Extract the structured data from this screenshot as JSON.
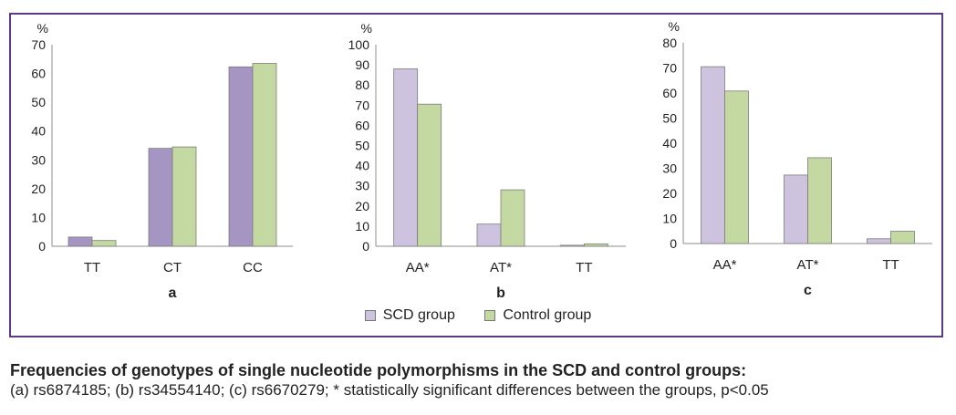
{
  "chart_data": [
    {
      "type": "bar",
      "label": "a",
      "ylabel": "%",
      "ylim": [
        0,
        70
      ],
      "yticks": [
        0,
        10,
        20,
        30,
        40,
        50,
        60,
        70
      ],
      "categories": [
        "TT",
        "CT",
        "CC"
      ],
      "series": [
        {
          "name": "SCD group",
          "values": [
            3.2,
            34,
            62.3
          ],
          "color": "#a595c3"
        },
        {
          "name": "Control group",
          "values": [
            2,
            34.5,
            63.5
          ],
          "color": "#c4d9a1"
        }
      ]
    },
    {
      "type": "bar",
      "label": "b",
      "ylabel": "%",
      "ylim": [
        0,
        100
      ],
      "yticks": [
        0,
        10,
        20,
        30,
        40,
        50,
        60,
        70,
        80,
        90,
        100
      ],
      "categories": [
        "AA*",
        "AT*",
        "TT"
      ],
      "series": [
        {
          "name": "SCD group",
          "values": [
            88,
            11,
            0.5
          ],
          "color": "#cdc3df"
        },
        {
          "name": "Control group",
          "values": [
            70.5,
            28,
            1.2
          ],
          "color": "#c4d9a1"
        }
      ]
    },
    {
      "type": "bar",
      "label": "c",
      "ylabel": "%",
      "ylim": [
        0,
        80
      ],
      "yticks": [
        0,
        10,
        20,
        30,
        40,
        50,
        60,
        70,
        80
      ],
      "categories": [
        "AA*",
        "AT*",
        "TT"
      ],
      "series": [
        {
          "name": "SCD group",
          "values": [
            70.5,
            27.3,
            1.9
          ],
          "color": "#cdc3df"
        },
        {
          "name": "Control group",
          "values": [
            60.8,
            34.2,
            4.9
          ],
          "color": "#c4d9a1"
        }
      ]
    }
  ],
  "legend": [
    {
      "label": "SCD group",
      "color": "#cdc3df"
    },
    {
      "label": "Control group",
      "color": "#c4d9a1"
    }
  ],
  "caption": {
    "title": "Frequencies of genotypes of single nucleotide polymorphisms in the SCD and control groups:",
    "note": "(a) rs6874185; (b) rs34554140; (c) rs6670279; * statistically significant differences between the groups, p<0.05"
  }
}
